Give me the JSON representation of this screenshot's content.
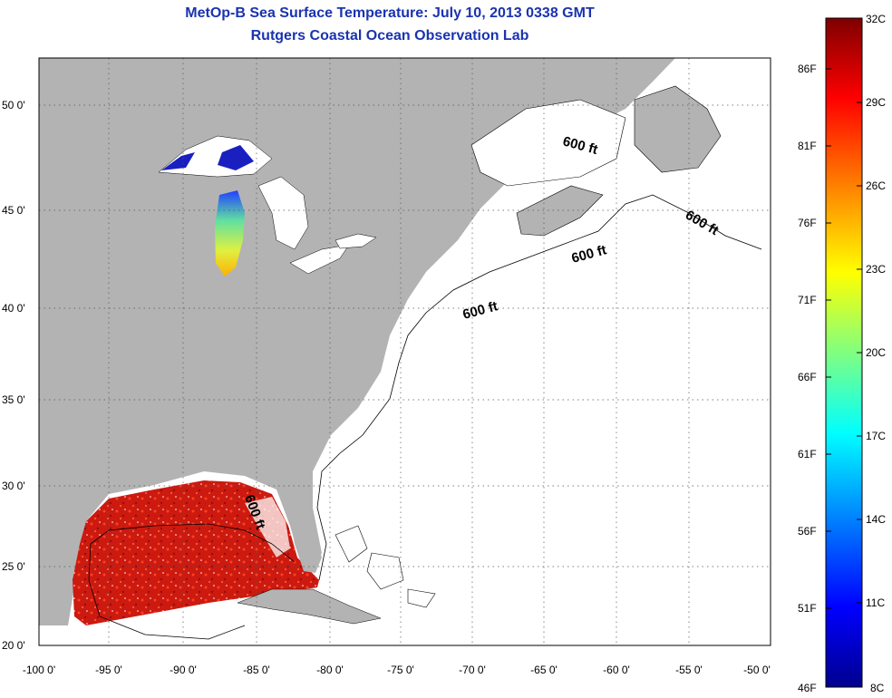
{
  "title": {
    "line1": "MetOp-B Sea Surface Temperature:  July 10, 2013 0338 GMT",
    "line2": "Rutgers Coastal Ocean Observation Lab"
  },
  "axes": {
    "lat_ticks": [
      "20 0'",
      "25 0'",
      "30 0'",
      "35 0'",
      "40 0'",
      "45 0'",
      "50 0'"
    ],
    "lat_values": [
      20,
      25,
      30,
      35,
      40,
      45,
      50
    ],
    "lon_ticks": [
      "-100 0'",
      "-95 0'",
      "-90 0'",
      "-85 0'",
      "-80 0'",
      "-75 0'",
      "-70 0'",
      "-65 0'",
      "-60 0'",
      "-55 0'",
      "-50 0'"
    ],
    "lon_values": [
      -100,
      -95,
      -90,
      -85,
      -80,
      -75,
      -70,
      -65,
      -60,
      -55,
      -50
    ],
    "lat_range": [
      20,
      52.6
    ],
    "lon_range": [
      -100,
      -50
    ],
    "grid": true
  },
  "isobath": {
    "label": "600 ft",
    "labels": [
      "600 ft",
      "600 ft",
      "600 ft",
      "600 ft",
      "600 ft"
    ]
  },
  "colorbar": {
    "celsius": [
      "32C",
      "29C",
      "26C",
      "23C",
      "20C",
      "17C",
      "14C",
      "11C",
      "8C"
    ],
    "fahrenheit": [
      "86F",
      "81F",
      "76F",
      "71F",
      "66F",
      "61F",
      "56F",
      "51F",
      "46F"
    ],
    "stops": [
      "#7f0000",
      "#ff0000",
      "#ff8000",
      "#ffff00",
      "#80ff80",
      "#00ffff",
      "#0080ff",
      "#0000ff",
      "#00008f"
    ]
  },
  "colors": {
    "land": "#b3b3b3",
    "ocean": "#ffffff",
    "title": "#1a33b0",
    "gulf_sst": "#cc1a10"
  }
}
